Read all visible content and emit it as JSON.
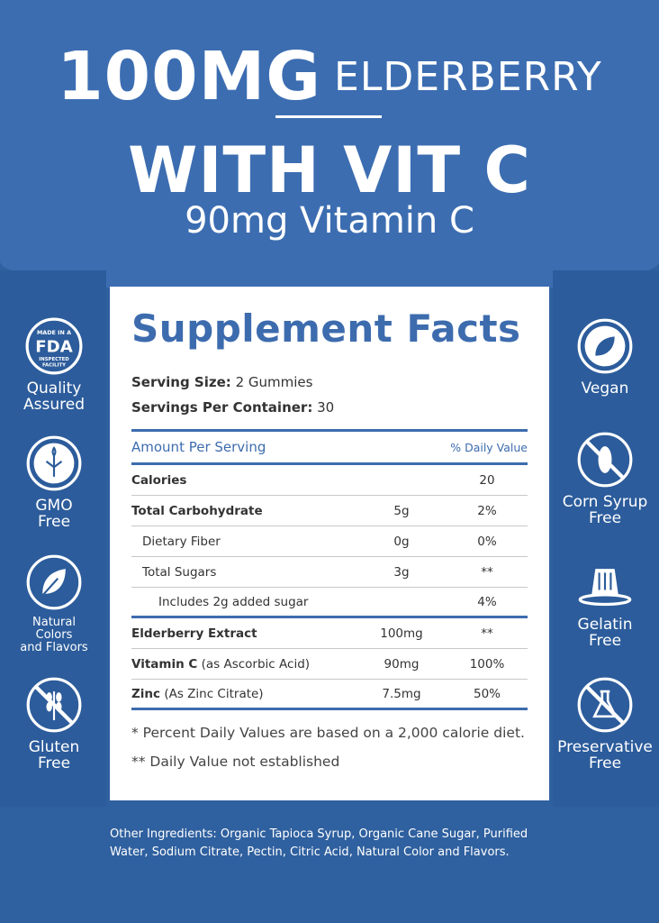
{
  "header": {
    "dose": "100MG",
    "product": "ELDERBERRY",
    "with": "WITH VIT C",
    "vitc": "90mg Vitamin C"
  },
  "left_badges": [
    {
      "icon": "fda-seal-icon",
      "seal_text": [
        "MADE IN A",
        "FDA",
        "INSPECTED FACILITY"
      ],
      "label": [
        "Quality",
        "Assured"
      ]
    },
    {
      "icon": "sprout-icon",
      "label": [
        "GMO",
        "Free"
      ]
    },
    {
      "icon": "leaf-icon",
      "label": [
        "Natural",
        "Colors",
        "and Flavors"
      ]
    },
    {
      "icon": "no-wheat-icon",
      "label": [
        "Gluten",
        "Free"
      ]
    }
  ],
  "right_badges": [
    {
      "icon": "vegan-leaf-icon",
      "label": [
        "Vegan"
      ]
    },
    {
      "icon": "no-corn-icon",
      "label": [
        "Corn Syrup",
        "Free"
      ]
    },
    {
      "icon": "gelatin-icon",
      "label": [
        "Gelatin",
        "Free"
      ]
    },
    {
      "icon": "no-flask-icon",
      "label": [
        "Preservative",
        "Free"
      ]
    }
  ],
  "facts": {
    "title": "Supplement Facts",
    "serving_size_label": "Serving Size:",
    "serving_size": "2 Gummies",
    "servings_label": "Servings Per Container:",
    "servings": "30",
    "col_amount": "Amount Per Serving",
    "col_dv": "% Daily Value",
    "rows": [
      {
        "name": "Calories",
        "extra": "",
        "amount": "",
        "dv": "20",
        "bold": true,
        "indent": 0
      },
      {
        "name": "Total Carbohydrate",
        "extra": "",
        "amount": "5g",
        "dv": "2%",
        "bold": true,
        "indent": 0
      },
      {
        "name": "Dietary Fiber",
        "extra": "",
        "amount": "0g",
        "dv": "0%",
        "bold": false,
        "indent": 1
      },
      {
        "name": "Total Sugars",
        "extra": "",
        "amount": "3g",
        "dv": "**",
        "bold": false,
        "indent": 1
      },
      {
        "name": "Includes 2g added sugar",
        "extra": "",
        "amount": "",
        "dv": "4%",
        "bold": false,
        "indent": 2
      },
      {
        "name": "Elderberry Extract",
        "extra": "",
        "amount": "100mg",
        "dv": "**",
        "bold": true,
        "indent": 0
      },
      {
        "name": "Vitamin C",
        "extra": " (as Ascorbic Acid)",
        "amount": "90mg",
        "dv": "100%",
        "bold": true,
        "indent": 0
      },
      {
        "name": "Zinc",
        "extra": " (As Zinc Citrate)",
        "amount": "7.5mg",
        "dv": "50%",
        "bold": true,
        "indent": 0
      }
    ],
    "footnote1": "* Percent Daily Values are based on a 2,000 calorie diet.",
    "footnote2": "** Daily Value not established"
  },
  "other_ingredients": "Other Ingredients: Organic Tapioca Syrup, Organic Cane Sugar, Purified Water, Sodium Citrate, Pectin, Citric Acid, Natural Color and Flavors.",
  "colors": {
    "background": "#2f609f",
    "header": "#3c6db1",
    "accent": "#3d6cae"
  }
}
